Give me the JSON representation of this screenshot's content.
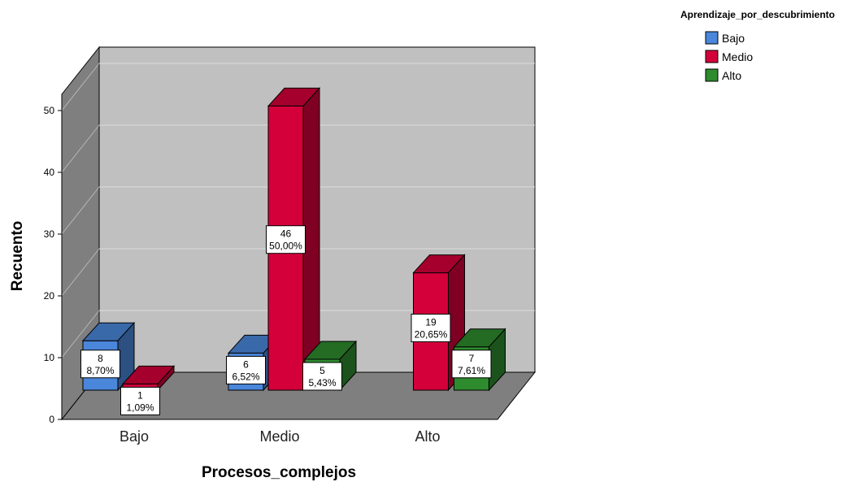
{
  "chart_data": {
    "type": "bar",
    "title": "",
    "xlabel": "Procesos_complejos",
    "ylabel": "Recuento",
    "categories": [
      "Bajo",
      "Medio",
      "Alto"
    ],
    "ylim": [
      0,
      50
    ],
    "yticks": [
      "0",
      "10",
      "20",
      "30",
      "40",
      "50"
    ],
    "legend_title": "Aprendizaje_por_descubrimiento",
    "legend_position": "top-right",
    "grid": true,
    "three_d": true,
    "series": [
      {
        "name": "Bajo",
        "color": "#4a86d9",
        "values": [
          8,
          6,
          null
        ],
        "labels": [
          "8,70%",
          "6,52%",
          null
        ]
      },
      {
        "name": "Medio",
        "color": "#d4003a",
        "values": [
          1,
          46,
          19
        ],
        "labels": [
          "1,09%",
          "50,00%",
          "20,65%"
        ]
      },
      {
        "name": "Alto",
        "color": "#2e8b2e",
        "values": [
          null,
          5,
          7
        ],
        "labels": [
          null,
          "5,43%",
          "7,61%"
        ]
      }
    ]
  }
}
